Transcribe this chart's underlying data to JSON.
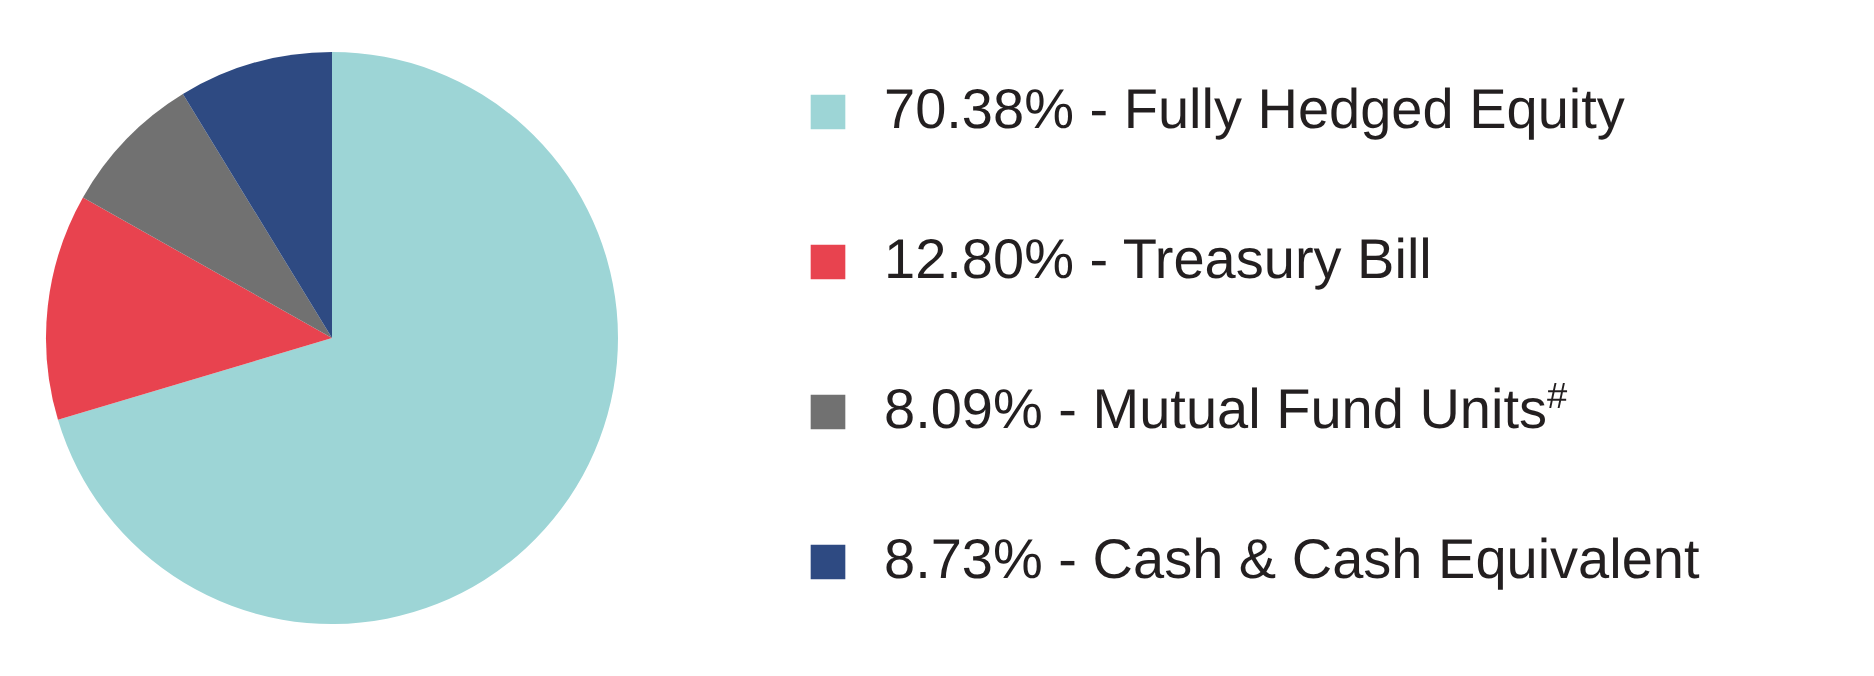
{
  "chart_data": {
    "type": "pie",
    "categories": [
      "70.38% - Fully Hedged Equity",
      "12.80% - Treasury Bill",
      "8.09% - Mutual Fund Units$^{#}$",
      "8.73% - Cash & Cash Equivalent"
    ],
    "values": [
      70.38,
      12.8,
      8.09,
      8.73
    ],
    "colors": [
      "#9dd5d6",
      "#e8434f",
      "#717171",
      "#2e4a82"
    ],
    "legend": "right"
  }
}
